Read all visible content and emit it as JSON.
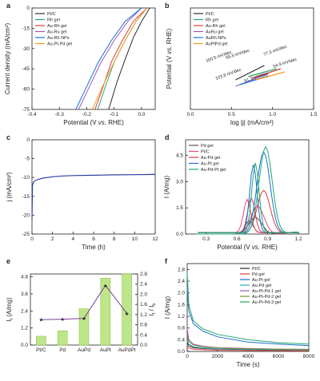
{
  "chart_data": [
    {
      "panel": "a",
      "type": "line",
      "xlabel": "Potential  (V vs. RHE)",
      "ylabel": "Current density  (mA/cm²)",
      "xlim": [
        -0.4,
        0.05
      ],
      "ylim": [
        -75,
        0
      ],
      "xticks": [
        "-0.4",
        "-0.3",
        "-0.2",
        "-0.1",
        "0.0"
      ],
      "yticks": [
        "0",
        "-15",
        "-30",
        "-45",
        "-60",
        "-75"
      ],
      "legend": "top-left",
      "series": [
        {
          "name": "Pt/C",
          "color": "#2b2b2b",
          "x": [
            0.03,
            0.0,
            -0.03,
            -0.06,
            -0.09,
            -0.12
          ],
          "y": [
            0,
            -10,
            -22,
            -38,
            -55,
            -75
          ]
        },
        {
          "name": "Rh gel",
          "color": "#22a86b",
          "x": [
            0.02,
            -0.02,
            -0.06,
            -0.1,
            -0.13,
            -0.16
          ],
          "y": [
            0,
            -10,
            -24,
            -40,
            -57,
            -75
          ]
        },
        {
          "name": "Au-Rh gel",
          "color": "#e03a3a",
          "x": [
            0.02,
            -0.03,
            -0.07,
            -0.11,
            -0.14,
            -0.17
          ],
          "y": [
            0,
            -10,
            -24,
            -40,
            -58,
            -75
          ]
        },
        {
          "name": "Au-Ru gel",
          "color": "#9b59c4",
          "x": [
            0.0,
            -0.05,
            -0.1,
            -0.15,
            -0.19,
            -0.23
          ],
          "y": [
            0,
            -10,
            -24,
            -41,
            -58,
            -75
          ]
        },
        {
          "name": "Au-Rh NPs",
          "color": "#1a6fd1",
          "x": [
            0.0,
            -0.06,
            -0.11,
            -0.16,
            -0.2,
            -0.24
          ],
          "y": [
            0,
            -10,
            -24,
            -41,
            -58,
            -75
          ]
        },
        {
          "name": "Au-Pt-Pd gel",
          "color": "#f0a020",
          "x": [
            0.02,
            -0.02,
            -0.06,
            -0.1,
            -0.14,
            -0.18
          ],
          "y": [
            0,
            -10,
            -24,
            -40,
            -57,
            -75
          ]
        }
      ]
    },
    {
      "panel": "b",
      "type": "line",
      "xlabel": "log |j| (mA/cm²)",
      "ylabel": "Potential (V vs. RHE)",
      "xlim": [
        0.0,
        1.5
      ],
      "xticks": [
        "0.0",
        "0.5",
        "1.0",
        "1.5"
      ],
      "legend": "top-left",
      "series": [
        {
          "name": "Pt/C",
          "color": "#2b2b2b"
        },
        {
          "name": "Rh gel",
          "color": "#22a86b"
        },
        {
          "name": "Au-Rh gel",
          "color": "#e03a3a"
        },
        {
          "name": "AuRu gel",
          "color": "#9b59c4"
        },
        {
          "name": "AuRh NPs",
          "color": "#1a6fd1"
        },
        {
          "name": "AuPtPd gel",
          "color": "#f0a020"
        }
      ],
      "annotations": [
        "100.5 mV/dec",
        "65.5 mV/dec",
        "77.3 mV/dec",
        "54.9 mV/dec",
        "103.8 mV/dec",
        "61.3 mV/dec"
      ]
    },
    {
      "panel": "c",
      "type": "line",
      "xlabel": "Time (h)",
      "ylabel": "j  (mA/cm²)",
      "xlim": [
        0,
        12
      ],
      "ylim": [
        -25,
        0
      ],
      "xticks": [
        "0",
        "2",
        "4",
        "6",
        "8",
        "10",
        "12"
      ],
      "yticks": [
        "0",
        "-5",
        "-10",
        "-15",
        "-20",
        "-25"
      ],
      "series": [
        {
          "color": "#2a3f9e",
          "x": [
            0,
            0.05,
            0.2,
            0.5,
            1,
            2,
            3,
            4,
            6,
            8,
            10,
            12
          ],
          "y": [
            -21,
            -12,
            -11,
            -10.6,
            -10.2,
            -9.8,
            -9.6,
            -9.5,
            -9.4,
            -9.3,
            -9.25,
            -9.2
          ]
        }
      ]
    },
    {
      "panel": "d",
      "type": "line",
      "xlabel": "Potential (V vs. RHE)",
      "ylabel": "I  (A/mg)",
      "xlim": [
        0.1,
        1.3
      ],
      "ylim": [
        0,
        5.4
      ],
      "xticks": [
        "0.3",
        "0.6",
        "0.9",
        "1.2"
      ],
      "yticks": [
        "0.0",
        "1.5",
        "3.0",
        "4.5"
      ],
      "legend": "top-left",
      "series": [
        {
          "name": "Pd gel",
          "color": "#555555"
        },
        {
          "name": "Pt/C",
          "color": "#e84a7a"
        },
        {
          "name": "Au-Pd gel",
          "color": "#e03a3a"
        },
        {
          "name": "Au-Pt gel",
          "color": "#1a6fd1"
        },
        {
          "name": "Au-Pd-Pt gel",
          "color": "#22a86b"
        }
      ]
    },
    {
      "panel": "e",
      "type": "bar",
      "categories": [
        "Pt/C",
        "Pd",
        "AuPd",
        "AuPt",
        "AuPdPt"
      ],
      "series": [
        {
          "name": "If",
          "values": [
            0.62,
            1.0,
            2.55,
            4.7,
            5.0
          ]
        },
        {
          "name": "If/Ib",
          "values": [
            1.0,
            1.02,
            1.05,
            2.35,
            1.25
          ]
        }
      ],
      "ylabel": "If (A/mg)",
      "ylabel2": "If / Ib",
      "ylim": [
        0,
        5.0
      ],
      "ylim2": [
        0,
        2.8
      ],
      "yticks": [
        "0.0",
        "1.2",
        "2.4",
        "3.6",
        "4.8"
      ],
      "yticks2": [
        "0.0",
        "0.4",
        "0.8",
        "1.2",
        "1.6",
        "2.0",
        "2.4",
        "2.8"
      ]
    },
    {
      "panel": "f",
      "type": "line",
      "xlabel": "Time (s)",
      "ylabel": "I (A/mg)",
      "xlim": [
        0,
        8000
      ],
      "ylim": [
        0,
        3.0
      ],
      "xticks": [
        "0",
        "2000",
        "4000",
        "6000",
        "8000"
      ],
      "yticks": [
        "0.0",
        "0.4",
        "0.8",
        "1.2",
        "1.6",
        "2.0",
        "2.4",
        "2.8"
      ],
      "legend": "top-right",
      "series": [
        {
          "name": "Pt/C",
          "color": "#2b2b2b",
          "x": [
            0,
            100,
            400,
            1000,
            2000,
            4000,
            6000,
            8000
          ],
          "y": [
            0.3,
            0.2,
            0.13,
            0.1,
            0.08,
            0.06,
            0.05,
            0.05
          ]
        },
        {
          "name": "Pd gel",
          "color": "#e03a3a",
          "x": [
            0,
            100,
            400,
            1000,
            2000,
            4000,
            6000,
            8000
          ],
          "y": [
            0.2,
            0.12,
            0.08,
            0.06,
            0.04,
            0.03,
            0.03,
            0.02
          ]
        },
        {
          "name": "Au-Pt gel",
          "color": "#1a6fd1",
          "x": [
            0,
            100,
            400,
            1000,
            2000,
            4000,
            6000,
            8000
          ],
          "y": [
            2.2,
            1.4,
            0.95,
            0.7,
            0.5,
            0.32,
            0.25,
            0.2
          ]
        },
        {
          "name": "Au-Pd gel",
          "color": "#2aa9b8",
          "x": [
            0,
            100,
            400,
            1000,
            2000,
            4000,
            6000,
            8000
          ],
          "y": [
            0.4,
            0.25,
            0.16,
            0.12,
            0.09,
            0.07,
            0.06,
            0.05
          ]
        },
        {
          "name": "Au-Pt-Pd-1 gel",
          "color": "#9b59c4",
          "x": [
            0,
            100,
            400,
            1000,
            2000,
            4000,
            6000,
            8000
          ],
          "y": [
            0.8,
            0.4,
            0.25,
            0.18,
            0.13,
            0.1,
            0.08,
            0.07
          ]
        },
        {
          "name": "Au-Pt-Pd-2 gel",
          "color": "#7a8a2a",
          "x": [
            0,
            100,
            400,
            1000,
            2000,
            4000,
            6000,
            8000
          ],
          "y": [
            0.6,
            0.35,
            0.22,
            0.16,
            0.12,
            0.09,
            0.08,
            0.07
          ]
        },
        {
          "name": "Au-Pt-Pd-3 gel",
          "color": "#22a86b",
          "x": [
            0,
            100,
            400,
            1000,
            2000,
            4000,
            6000,
            8000
          ],
          "y": [
            2.7,
            1.6,
            1.05,
            0.78,
            0.58,
            0.4,
            0.3,
            0.25
          ]
        }
      ]
    }
  ],
  "panel_labels": [
    "a",
    "b",
    "c",
    "d",
    "e",
    "f"
  ]
}
